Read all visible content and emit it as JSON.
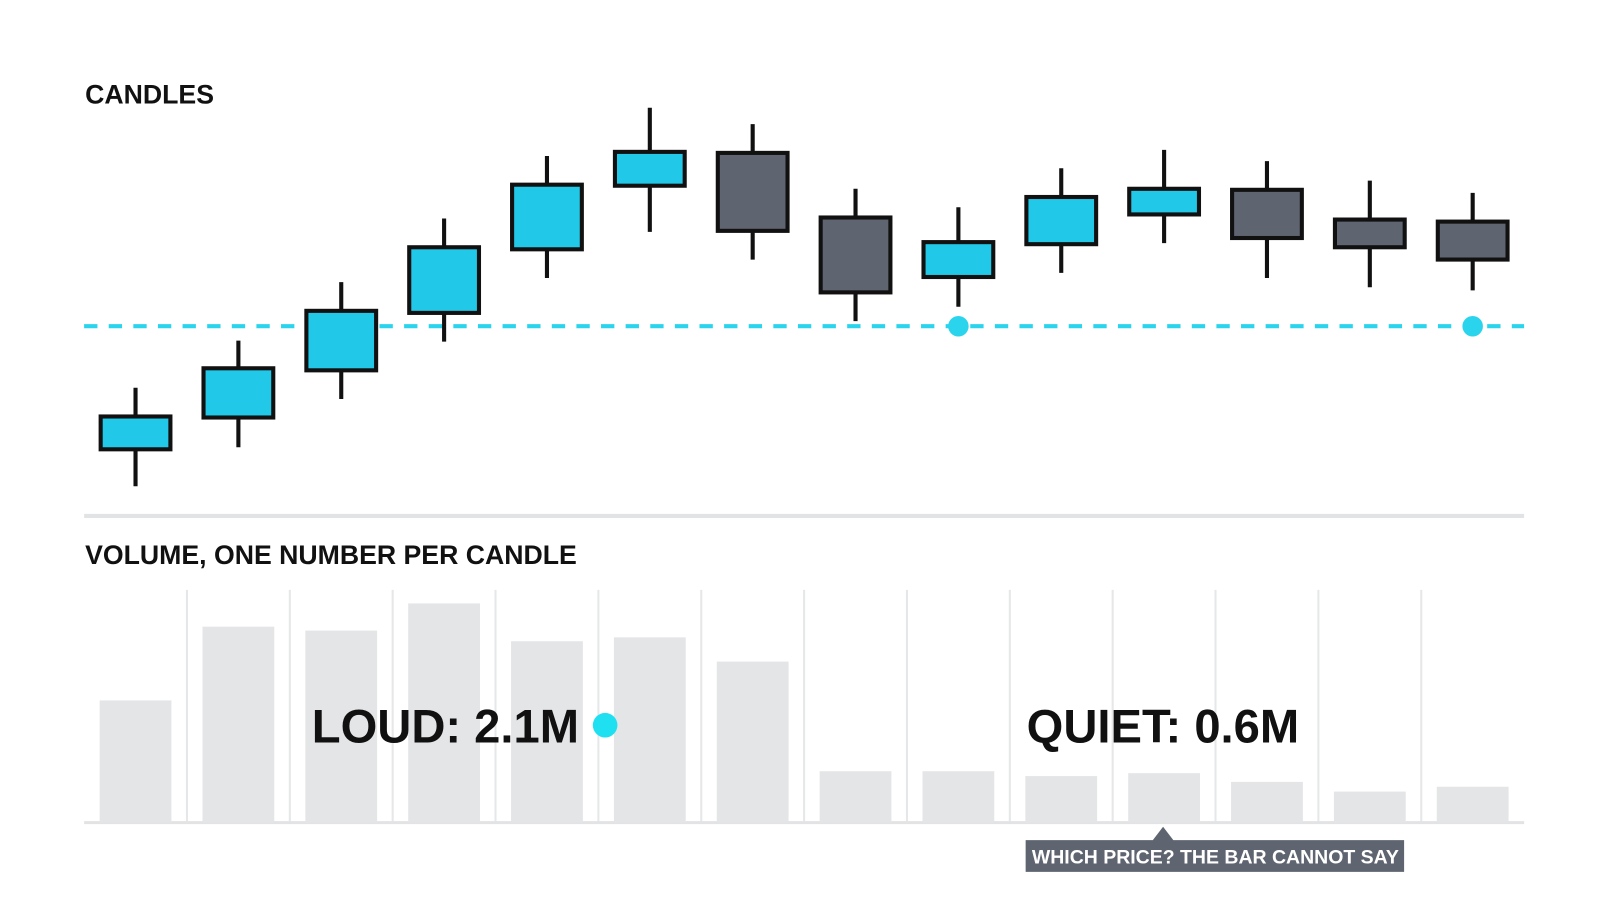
{
  "chart_data": [
    {
      "type": "candlestick",
      "title": "CANDLES",
      "open": [
        4.2,
        7.3,
        11.9,
        17.5,
        23.7,
        29.9,
        33.1,
        26.8,
        21.0,
        24.2,
        27.1,
        29.5,
        26.6,
        26.4
      ],
      "high": [
        10.2,
        14.8,
        20.5,
        26.7,
        32.8,
        37.5,
        35.9,
        29.6,
        27.8,
        31.6,
        33.4,
        32.3,
        30.4,
        29.2
      ],
      "low": [
        0.6,
        4.4,
        9.1,
        14.7,
        20.9,
        25.4,
        22.7,
        16.7,
        18.1,
        21.4,
        24.3,
        20.9,
        20.0,
        19.7
      ],
      "close": [
        7.4,
        12.1,
        17.7,
        23.9,
        30.0,
        33.2,
        25.5,
        19.5,
        24.4,
        28.8,
        29.6,
        24.8,
        23.9,
        22.7
      ],
      "up_color": "#22c8e8",
      "down_color": "#5f6570",
      "level": 16.2,
      "level_color": "#2ad4ec",
      "ylim": [
        0,
        40
      ]
    },
    {
      "type": "bar",
      "title": "VOLUME, ONE NUMBER PER CANDLE",
      "values": [
        1.26,
        2.02,
        1.98,
        2.26,
        1.87,
        1.91,
        1.66,
        0.53,
        0.53,
        0.48,
        0.51,
        0.42,
        0.32,
        0.37
      ],
      "color": "#e4e5e7",
      "ylim": [
        0,
        2.4
      ],
      "grid": true,
      "annotations": [
        "LOUD: 2.1M",
        "QUIET: 0.6M",
        "WHICH PRICE? THE BAR CANNOT SAY"
      ]
    }
  ]
}
